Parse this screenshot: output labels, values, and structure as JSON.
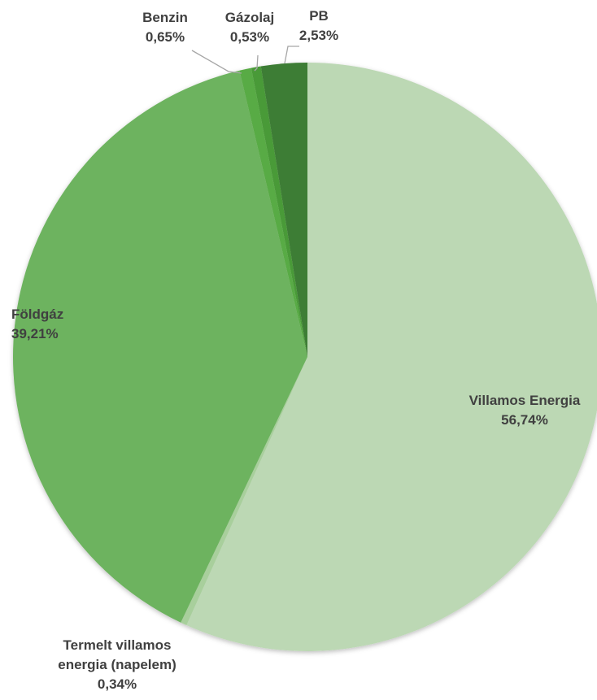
{
  "chart_data": {
    "type": "pie",
    "title": "",
    "unit": "%",
    "slices": [
      {
        "label": "Villamos Energia",
        "label_lines": [
          "Villamos Energia"
        ],
        "value": 56.74,
        "value_text": "56,74%",
        "color": "#bcd8b4"
      },
      {
        "label": "Termelt villamos energia (napelem)",
        "label_lines": [
          "Termelt villamos",
          "energia (napelem)"
        ],
        "value": 0.34,
        "value_text": "0,34%",
        "color": "#a8cf9c"
      },
      {
        "label": "Földgáz",
        "label_lines": [
          "Földgáz"
        ],
        "value": 39.21,
        "value_text": "39,21%",
        "color": "#6db35e"
      },
      {
        "label": "Benzin",
        "label_lines": [
          "Benzin"
        ],
        "value": 0.65,
        "value_text": "0,65%",
        "color": "#58ab45"
      },
      {
        "label": "Gázolaj",
        "label_lines": [
          "Gázolaj"
        ],
        "value": 0.53,
        "value_text": "0,53%",
        "color": "#4a9a38"
      },
      {
        "label": "PB",
        "label_lines": [
          "PB"
        ],
        "value": 2.53,
        "value_text": "2,53%",
        "color": "#3e7d35"
      }
    ]
  }
}
